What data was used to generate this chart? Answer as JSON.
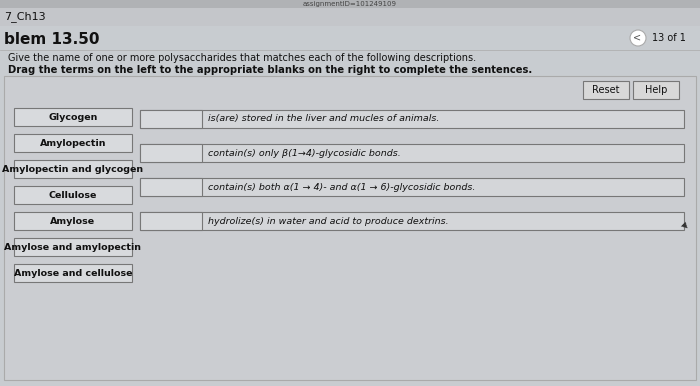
{
  "title_left": "7_Ch13",
  "problem_label": "blem 13.50",
  "page_indicator": "13 of 1",
  "instruction1": "Give the name of one or more polysaccharides that matches each of the following descriptions.",
  "instruction2": "Drag the terms on the left to the appropriate blanks on the right to complete the sentences.",
  "left_terms": [
    "Glycogen",
    "Amylopectin",
    "Amylopectin and glycogen",
    "Cellulose",
    "Amylose",
    "Amylose and amylopectin",
    "Amylose and cellulose"
  ],
  "right_descriptions": [
    "is(are) stored in the liver and mucles of animals.",
    "contain(s) only β(1→4)-glycosidic bonds.",
    "contain(s) both α(1 → 4)- and α(1 → 6)-glycosidic bonds.",
    "hydrolize(s) in water and acid to produce dextrins."
  ],
  "bg_top": "#c8ccd0",
  "bg_main": "#c8ccd0",
  "panel_bg": "#cbcdd1",
  "box_bg": "#d8dadd",
  "box_border": "#888888",
  "text_color": "#111111",
  "button_color": "#d8d8d8",
  "url_text": "assignmentID=101249109",
  "url_bar_color": "#b0b2b5"
}
